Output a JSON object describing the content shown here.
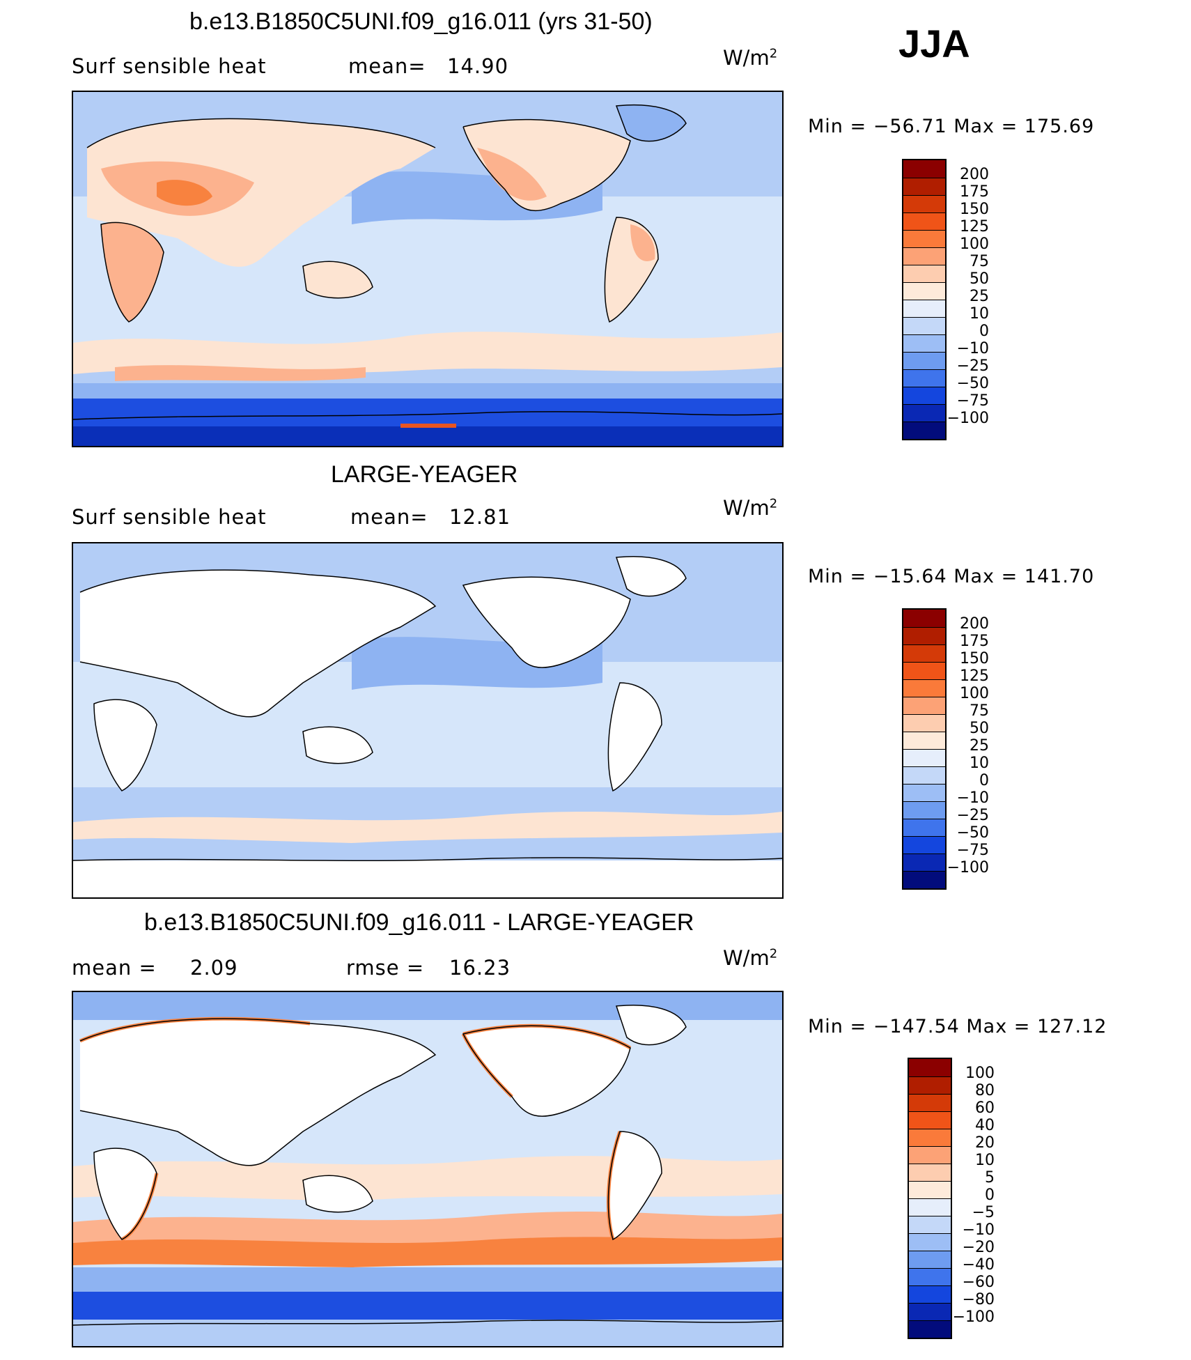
{
  "season": "JJA",
  "panels": [
    {
      "title": "b.e13.B1850C5UNI.f09_g16.011 (yrs 31-50)",
      "field_label": "Surf  sensible  heat",
      "stat1_label": "mean=",
      "stat1_value": "14.90",
      "stat2_label": "",
      "stat2_value": "",
      "units_base": "W/m",
      "units_sup": "2",
      "min_max": "Min  =  −56.71  Max  =  175.69",
      "colorbar_labels": [
        "200",
        "175",
        "150",
        "125",
        "100",
        "75",
        "50",
        "25",
        "10",
        "0",
        "−10",
        "−25",
        "−50",
        "−75",
        "−100"
      ]
    },
    {
      "title": "LARGE-YEAGER",
      "field_label": "Surf  sensible  heat",
      "stat1_label": "mean=",
      "stat1_value": "12.81",
      "stat2_label": "",
      "stat2_value": "",
      "units_base": "W/m",
      "units_sup": "2",
      "min_max": "Min  =  −15.64  Max  =  141.70",
      "colorbar_labels": [
        "200",
        "175",
        "150",
        "125",
        "100",
        "75",
        "50",
        "25",
        "10",
        "0",
        "−10",
        "−25",
        "−50",
        "−75",
        "−100"
      ]
    },
    {
      "title": "b.e13.B1850C5UNI.f09_g16.011 - LARGE-YEAGER",
      "field_label": "mean  =",
      "stat1_label": "",
      "stat1_value": "2.09",
      "stat2_label": "rmse  =",
      "stat2_value": "16.23",
      "units_base": "W/m",
      "units_sup": "2",
      "min_max": "Min  =  −147.54  Max  =  127.12",
      "colorbar_labels": [
        "100",
        "80",
        "60",
        "40",
        "20",
        "10",
        "5",
        "0",
        "−5",
        "−10",
        "−20",
        "−40",
        "−60",
        "−80",
        "−100"
      ]
    }
  ],
  "colorbar_colors": [
    "#8b0000",
    "#b01e00",
    "#d43a08",
    "#f05418",
    "#fa7a3a",
    "#fca276",
    "#fdcdb0",
    "#fdeada",
    "#e6eefb",
    "#c4d8f8",
    "#9dbef5",
    "#6e9cf0",
    "#3f74ec",
    "#1446de",
    "#0a28b4",
    "#020c7c"
  ],
  "map_colors": {
    "ocean_light": "#d6e6fa",
    "ocean_mid": "#b3cdf6",
    "ocean_blue": "#8eb3f2",
    "antarctic": "#1d4ee0",
    "antarctic_dark": "#0a2fb8",
    "warm_pale": "#fde4d2",
    "warm": "#fcb28e",
    "warm_strong": "#f8823f",
    "hot": "#e95521",
    "land_none": "#ffffff"
  }
}
